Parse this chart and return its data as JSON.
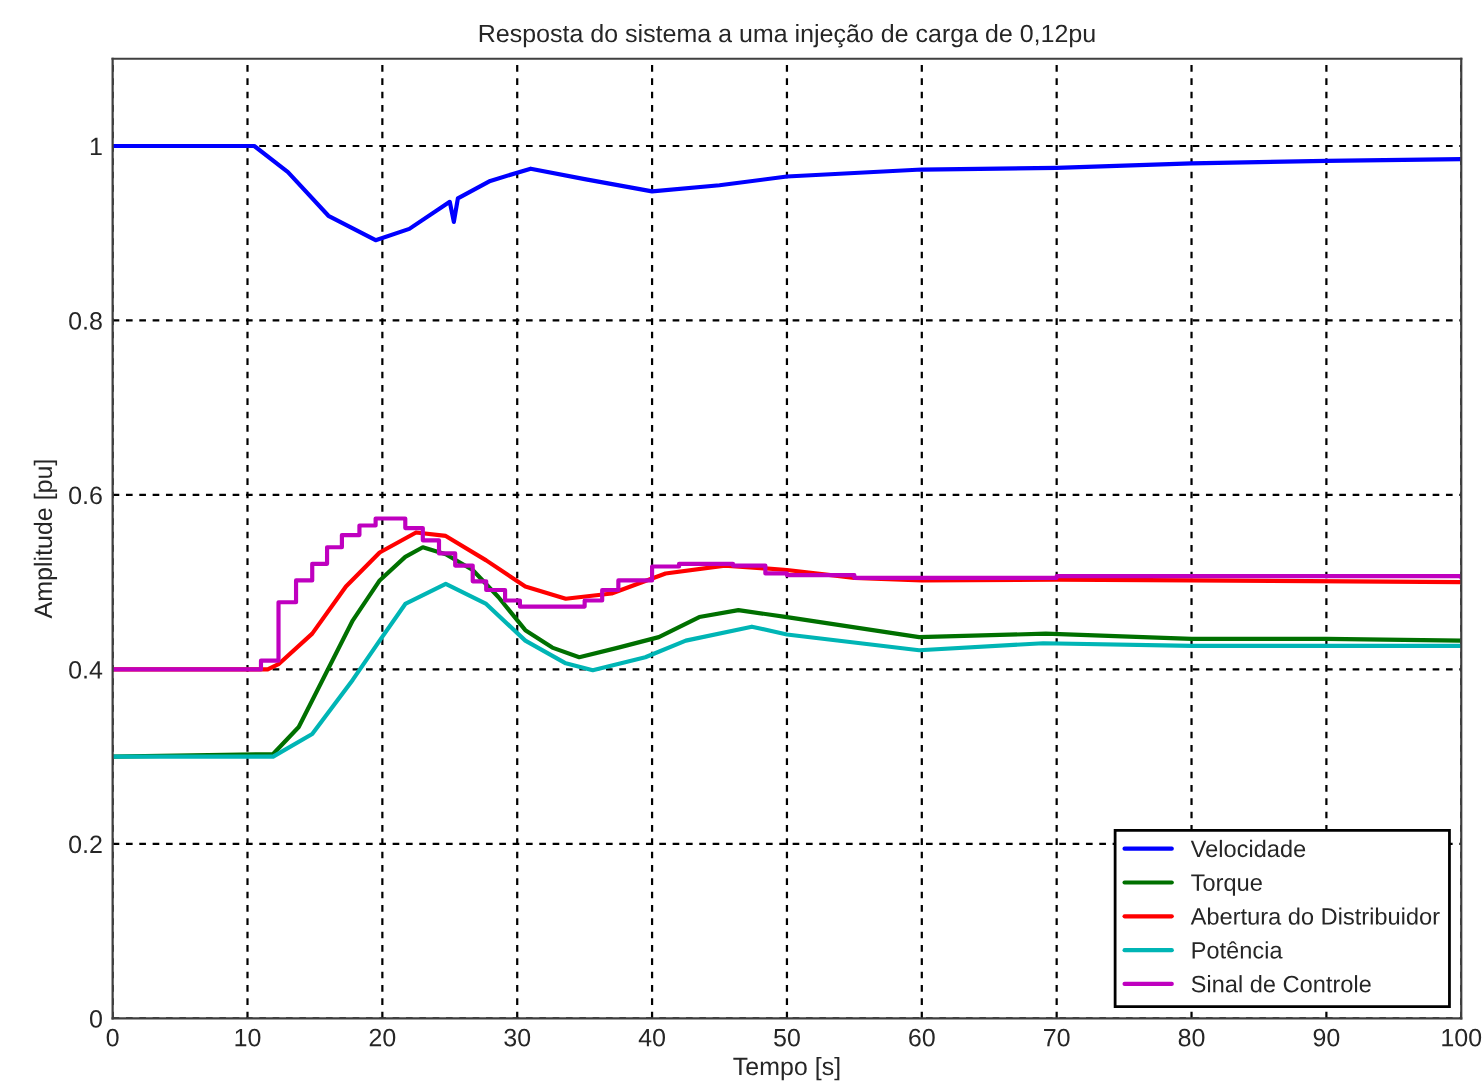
{
  "chart_data": {
    "type": "line",
    "title": "Resposta do sistema a uma injeção de carga de 0,12pu",
    "xlabel": "Tempo [s]",
    "ylabel": "Amplitude [pu]",
    "xlim": [
      0,
      100
    ],
    "ylim": [
      0,
      1.1
    ],
    "xticks": [
      0,
      10,
      20,
      30,
      40,
      50,
      60,
      70,
      80,
      90,
      100
    ],
    "yticks": [
      0,
      0.2,
      0.4,
      0.6,
      0.8,
      1
    ],
    "grid": true,
    "legend": "bottom right",
    "line_style": "solid",
    "marker": "none",
    "series": [
      {
        "name": "Velocidade",
        "color": "#0000ff",
        "x": [
          0,
          10.5,
          13,
          16,
          19.5,
          22,
          25,
          25.3,
          25.6,
          28,
          31,
          35,
          40,
          45,
          50,
          60,
          70,
          80,
          90,
          100
        ],
        "values": [
          1,
          1,
          0.97,
          0.92,
          0.892,
          0.905,
          0.936,
          0.913,
          0.94,
          0.96,
          0.974,
          0.962,
          0.948,
          0.955,
          0.965,
          0.973,
          0.975,
          0.98,
          0.983,
          0.985
        ]
      },
      {
        "name": "Torque",
        "color": "#007000",
        "x": [
          0,
          11.9,
          13.8,
          15.8,
          17.8,
          19.8,
          21.7,
          23,
          24.7,
          26.7,
          28.6,
          30.6,
          32.6,
          34.6,
          37.5,
          40.5,
          43.5,
          46.4,
          50,
          59.8,
          69.2,
          80,
          90,
          100
        ],
        "values": [
          0.3,
          0.303,
          0.334,
          0.395,
          0.456,
          0.502,
          0.529,
          0.54,
          0.532,
          0.514,
          0.483,
          0.445,
          0.425,
          0.414,
          0.425,
          0.437,
          0.46,
          0.468,
          0.46,
          0.437,
          0.441,
          0.435,
          0.435,
          0.433
        ]
      },
      {
        "name": "Abertura do Distribuidor",
        "color": "#ff0000",
        "x": [
          0,
          11.5,
          12.3,
          14.8,
          17.3,
          19.8,
          22.5,
          24.7,
          27.7,
          30.6,
          33.6,
          37,
          41,
          45.4,
          50,
          55,
          60,
          70,
          80,
          100
        ],
        "values": [
          0.4,
          0.4,
          0.406,
          0.441,
          0.495,
          0.534,
          0.557,
          0.553,
          0.525,
          0.495,
          0.481,
          0.487,
          0.51,
          0.519,
          0.514,
          0.505,
          0.502,
          0.503,
          0.502,
          0.5
        ]
      },
      {
        "name": "Potência",
        "color": "#00b5b5",
        "x": [
          0,
          11.9,
          14.8,
          17.8,
          19.8,
          21.7,
          24.7,
          27.7,
          30.6,
          33.6,
          35.6,
          39.5,
          42.5,
          47.4,
          50,
          59.8,
          69,
          80,
          90,
          100
        ],
        "values": [
          0.3,
          0.3,
          0.326,
          0.388,
          0.433,
          0.475,
          0.498,
          0.475,
          0.433,
          0.407,
          0.399,
          0.414,
          0.433,
          0.449,
          0.44,
          0.422,
          0.43,
          0.427,
          0.427,
          0.427
        ]
      },
      {
        "name": "Sinal de Controle",
        "type": "step",
        "color": "#bf00bf",
        "x": [
          0,
          11,
          12.3,
          13.6,
          14.8,
          15.9,
          17,
          18.3,
          19.5,
          21.7,
          23,
          24.2,
          25.4,
          26.7,
          27.7,
          29.1,
          30.2,
          35,
          36.3,
          37.5,
          40,
          42,
          46,
          48.4,
          50,
          55,
          70,
          100
        ],
        "values": [
          0.4,
          0.41,
          0.477,
          0.502,
          0.521,
          0.54,
          0.554,
          0.565,
          0.573,
          0.562,
          0.548,
          0.533,
          0.519,
          0.501,
          0.491,
          0.479,
          0.472,
          0.479,
          0.491,
          0.502,
          0.518,
          0.521,
          0.519,
          0.51,
          0.508,
          0.505,
          0.507,
          0.505
        ]
      }
    ]
  }
}
